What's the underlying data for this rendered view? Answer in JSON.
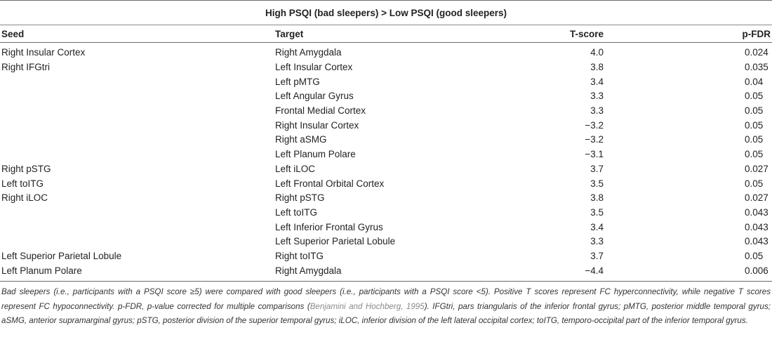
{
  "table": {
    "group_header": "High PSQI (bad sleepers) > Low PSQI (good sleepers)",
    "columns": [
      "Seed",
      "Target",
      "T-score",
      "p-FDR"
    ],
    "rows": [
      {
        "seed": "Right Insular Cortex",
        "target": "Right Amygdala",
        "t": "4.0",
        "p": "0.024"
      },
      {
        "seed": "Right IFGtri",
        "target": "Left Insular Cortex",
        "t": "3.8",
        "p": "0.035"
      },
      {
        "seed": "",
        "target": "Left pMTG",
        "t": "3.4",
        "p": "0.04"
      },
      {
        "seed": "",
        "target": "Left Angular Gyrus",
        "t": "3.3",
        "p": "0.05"
      },
      {
        "seed": "",
        "target": "Frontal Medial Cortex",
        "t": "3.3",
        "p": "0.05"
      },
      {
        "seed": "",
        "target": "Right Insular Cortex",
        "t": "−3.2",
        "p": "0.05"
      },
      {
        "seed": "",
        "target": "Right aSMG",
        "t": "−3.2",
        "p": "0.05"
      },
      {
        "seed": "",
        "target": "Left Planum Polare",
        "t": "−3.1",
        "p": "0.05"
      },
      {
        "seed": "Right pSTG",
        "target": "Left iLOC",
        "t": "3.7",
        "p": "0.027"
      },
      {
        "seed": "Left toITG",
        "target": "Left Frontal Orbital Cortex",
        "t": "3.5",
        "p": "0.05"
      },
      {
        "seed": "Right iLOC",
        "target": "Right pSTG",
        "t": "3.8",
        "p": "0.027"
      },
      {
        "seed": "",
        "target": "Left toITG",
        "t": "3.5",
        "p": "0.043"
      },
      {
        "seed": "",
        "target": "Left Inferior Frontal Gyrus",
        "t": "3.4",
        "p": "0.043"
      },
      {
        "seed": "",
        "target": "Left Superior Parietal Lobule",
        "t": "3.3",
        "p": "0.043"
      },
      {
        "seed": "Left Superior Parietal Lobule",
        "target": "Right toITG",
        "t": "3.7",
        "p": "0.05"
      },
      {
        "seed": "Left Planum Polare",
        "target": "Right Amygdala",
        "t": "−4.4",
        "p": "0.006"
      }
    ]
  },
  "footnote": {
    "text_before_ref": "Bad sleepers (i.e., participants with a PSQI score ≥5) were compared with good sleepers (i.e., participants with a PSQI score <5). Positive T scores represent FC hyperconnectivity, while negative T scores represent FC hypoconnectivity. p-FDR, p-value corrected for multiple comparisons (",
    "ref": "Benjamini and Hochberg, 1995",
    "text_after_ref": "). IFGtri, pars triangularis of the inferior frontal gyrus; pMTG, posterior middle temporal gyrus; aSMG, anterior supramarginal gyrus; pSTG, posterior division of the superior temporal gyrus; iLOC, inferior division of the left lateral occipital cortex; toITG, temporo-occipital part of the inferior temporal gyrus.",
    "ref_color": "#8a8a8a"
  }
}
